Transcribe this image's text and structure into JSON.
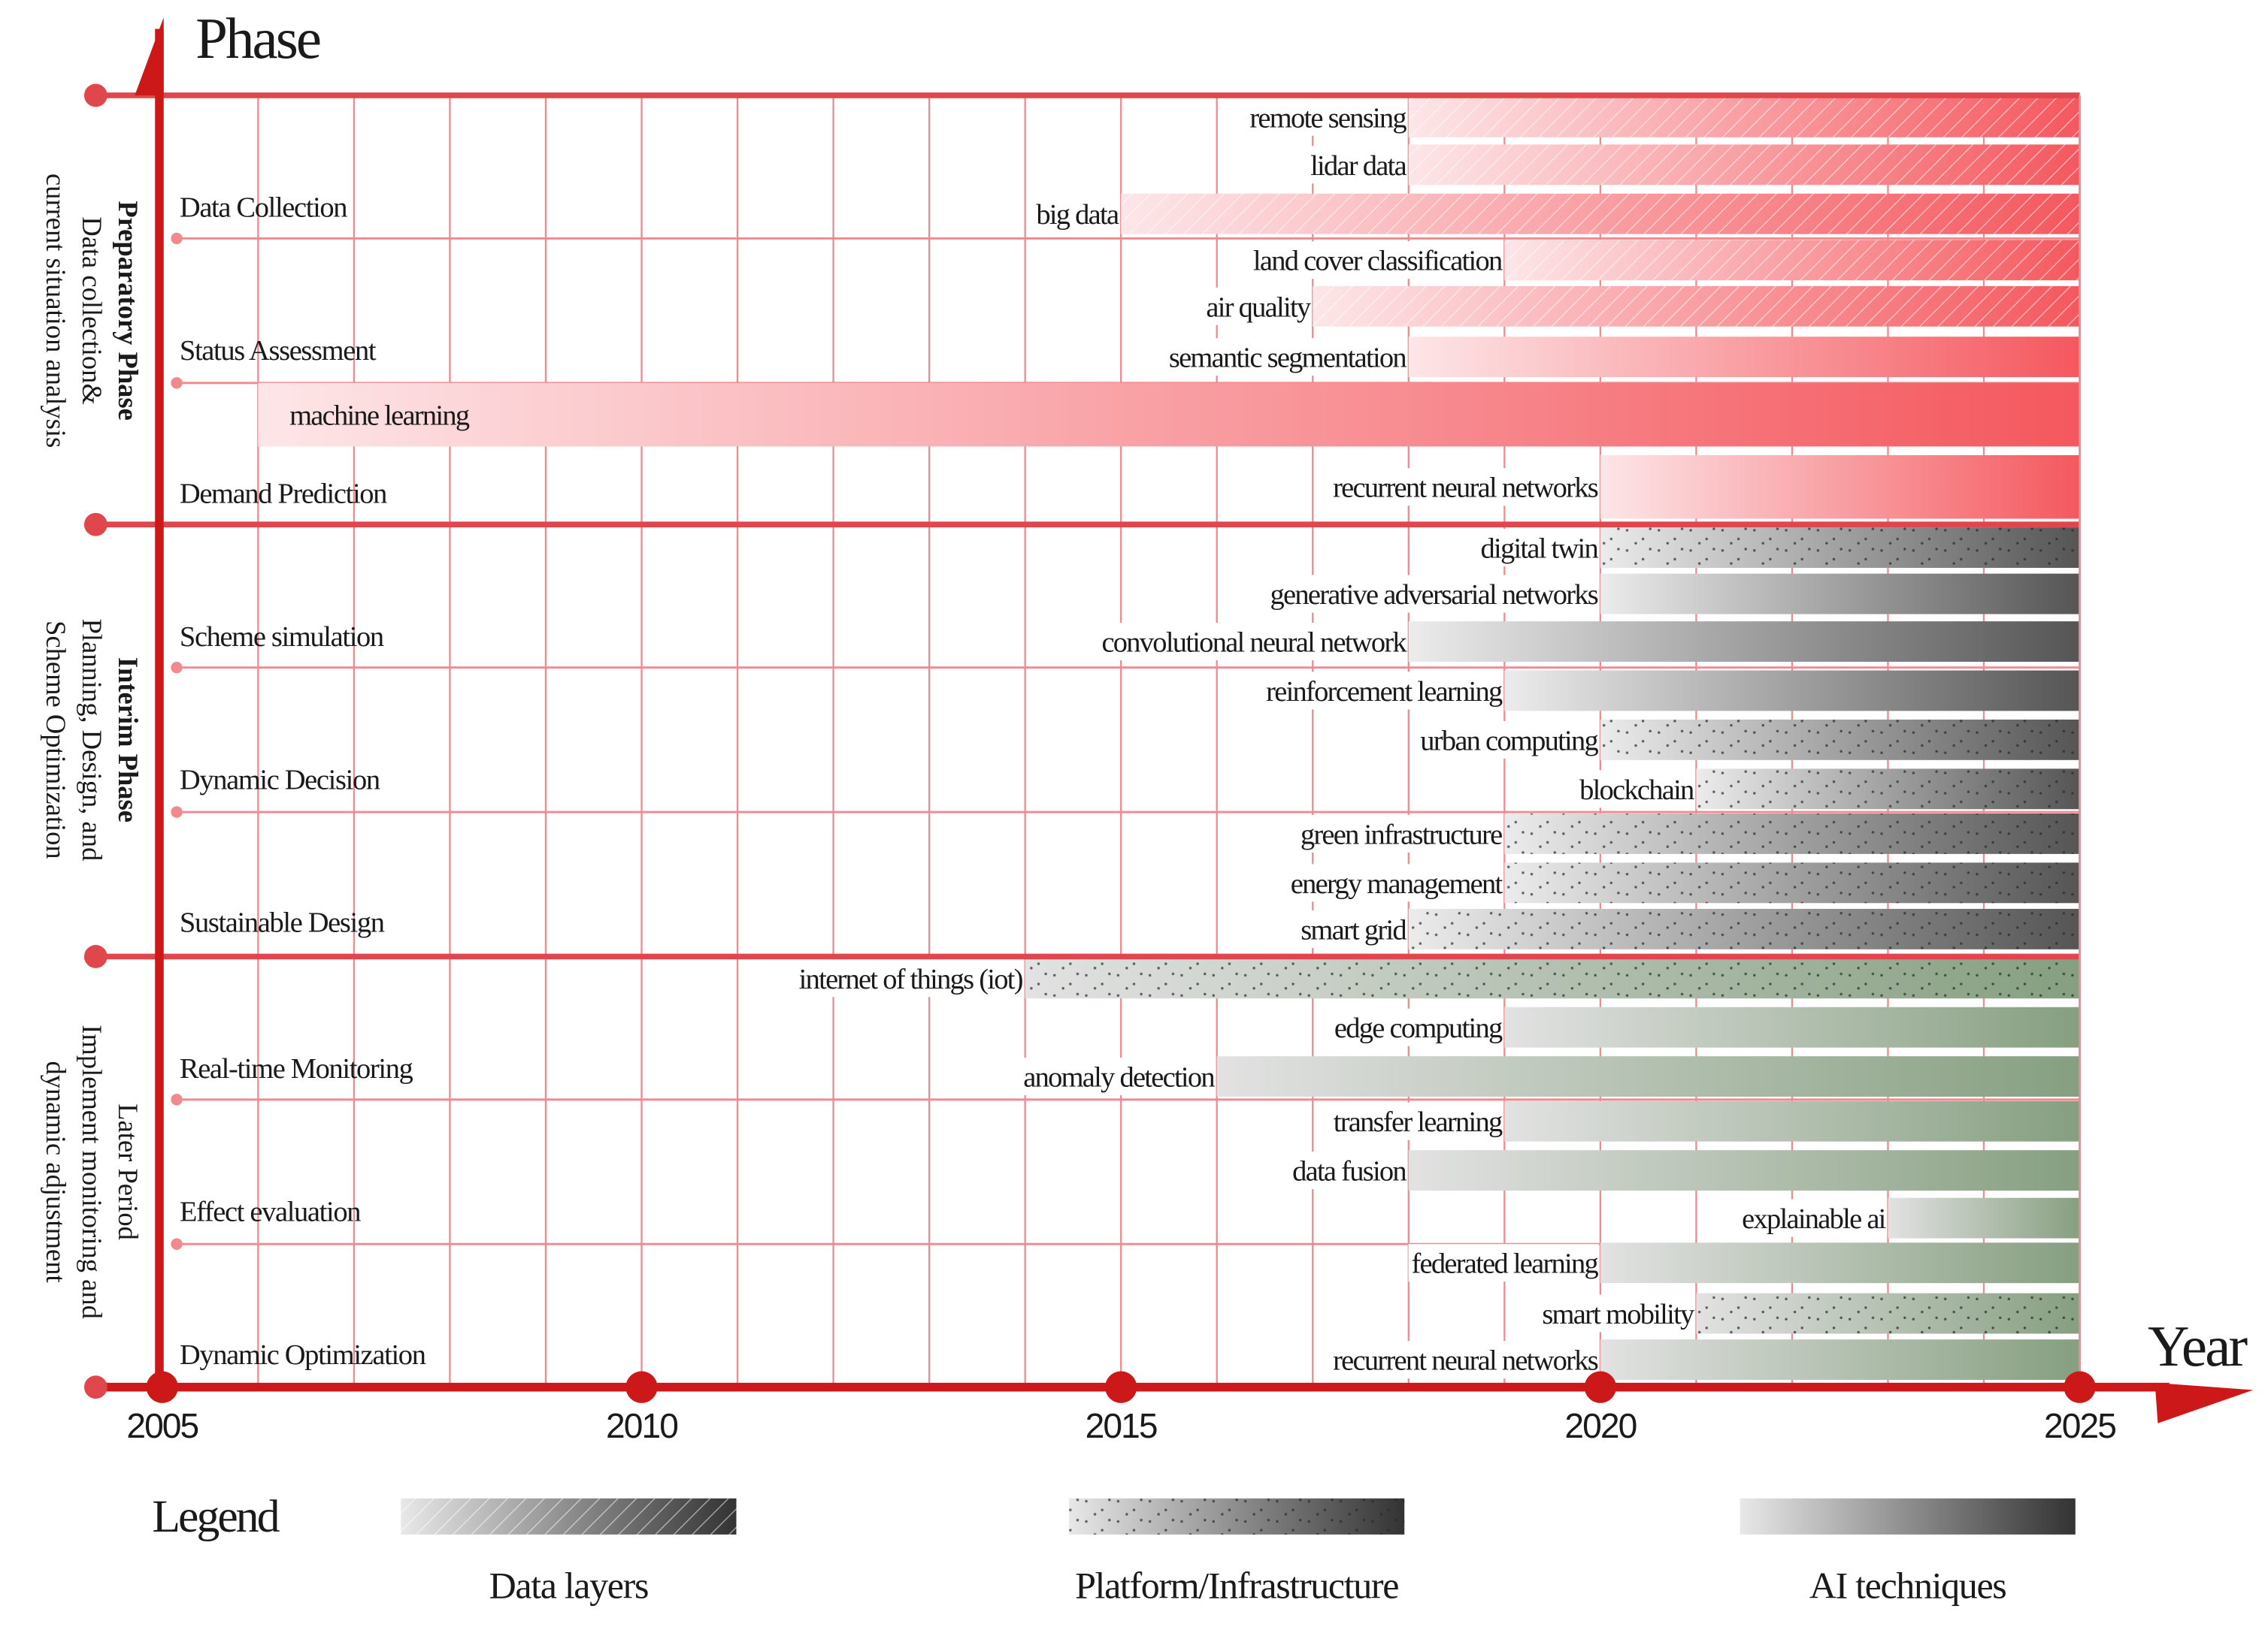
{
  "chart_data": {
    "type": "timeline-gantt",
    "y_axis_title": "Phase",
    "x_axis_title": "Year",
    "xlim": [
      2005,
      2025
    ],
    "x_ticks": [
      "2005",
      "2010",
      "2015",
      "2020",
      "2025"
    ],
    "grid": "vertical lines every year",
    "phases": [
      {
        "name": "Preparatory Phase",
        "desc1": "Data collection&",
        "desc2": "current situation analysis",
        "theme": "red",
        "bold": true,
        "rows": [
          "Data Collection",
          "Status Assessment",
          "Demand Prediction"
        ]
      },
      {
        "name": "Interim Phase",
        "desc1": "Planning, Design, and",
        "desc2": "Scheme Optimization",
        "theme": "gray",
        "bold": true,
        "rows": [
          "Scheme simulation",
          "Dynamic Decision",
          "Sustainable Design"
        ]
      },
      {
        "name": "Later Period",
        "desc1": "Implement monitoring and",
        "desc2": "dynamic adjustment",
        "theme": "green",
        "bold": false,
        "rows": [
          "Real-time Monitoring",
          "Effect evaluation",
          "Dynamic Optimization"
        ]
      }
    ],
    "bars": [
      {
        "label": "remote sensing",
        "start": 2018,
        "end": 2025,
        "category": "data",
        "theme": "red"
      },
      {
        "label": "lidar data",
        "start": 2018,
        "end": 2025,
        "category": "data",
        "theme": "red"
      },
      {
        "label": "big data",
        "start": 2015,
        "end": 2025,
        "category": "data",
        "theme": "red"
      },
      {
        "label": "land cover classification",
        "start": 2019,
        "end": 2025,
        "category": "data",
        "theme": "red"
      },
      {
        "label": "air quality",
        "start": 2017,
        "end": 2025,
        "category": "data",
        "theme": "red"
      },
      {
        "label": "semantic segmentation",
        "start": 2018,
        "end": 2025,
        "category": "ai",
        "theme": "red"
      },
      {
        "label": "machine learning",
        "start": 2006,
        "end": 2025,
        "category": "ai",
        "theme": "red",
        "inside": true
      },
      {
        "label": "recurrent neural networks",
        "start": 2020,
        "end": 2025,
        "category": "ai",
        "theme": "red"
      },
      {
        "label": "digital twin",
        "start": 2020,
        "end": 2025,
        "category": "platform",
        "theme": "gray"
      },
      {
        "label": "generative adversarial networks",
        "start": 2020,
        "end": 2025,
        "category": "ai",
        "theme": "gray"
      },
      {
        "label": "convolutional neural network",
        "start": 2018,
        "end": 2025,
        "category": "ai",
        "theme": "gray"
      },
      {
        "label": "reinforcement learning",
        "start": 2019,
        "end": 2025,
        "category": "ai",
        "theme": "gray"
      },
      {
        "label": "urban computing",
        "start": 2020,
        "end": 2025,
        "category": "platform",
        "theme": "gray"
      },
      {
        "label": "blockchain",
        "start": 2021,
        "end": 2025,
        "category": "platform",
        "theme": "gray"
      },
      {
        "label": "green infrastructure",
        "start": 2019,
        "end": 2025,
        "category": "platform",
        "theme": "gray"
      },
      {
        "label": "energy management",
        "start": 2019,
        "end": 2025,
        "category": "platform",
        "theme": "gray"
      },
      {
        "label": "smart grid",
        "start": 2018,
        "end": 2025,
        "category": "platform",
        "theme": "gray"
      },
      {
        "label": "internet of things (iot)",
        "start": 2014,
        "end": 2025,
        "category": "platform",
        "theme": "green"
      },
      {
        "label": "edge computing",
        "start": 2019,
        "end": 2025,
        "category": "ai",
        "theme": "green"
      },
      {
        "label": "anomaly detection",
        "start": 2016,
        "end": 2025,
        "category": "ai",
        "theme": "green"
      },
      {
        "label": "transfer learning",
        "start": 2019,
        "end": 2025,
        "category": "ai",
        "theme": "green"
      },
      {
        "label": "data fusion",
        "start": 2018,
        "end": 2025,
        "category": "ai",
        "theme": "green"
      },
      {
        "label": "explainable ai",
        "start": 2023,
        "end": 2025,
        "category": "ai",
        "theme": "green"
      },
      {
        "label": "federated learning",
        "start": 2020,
        "end": 2025,
        "category": "ai",
        "theme": "green"
      },
      {
        "label": "smart mobility",
        "start": 2021,
        "end": 2025,
        "category": "platform",
        "theme": "green"
      },
      {
        "label": "recurrent neural networks",
        "start": 2020,
        "end": 2025,
        "category": "ai",
        "theme": "green"
      }
    ],
    "legend": {
      "title": "Legend",
      "placement": "bottom",
      "items": [
        {
          "label": "Data layers",
          "category": "data"
        },
        {
          "label": "Platform/Infrastructure",
          "category": "platform"
        },
        {
          "label": "AI techniques",
          "category": "ai"
        }
      ]
    }
  },
  "colors": {
    "axis": "#cc1818",
    "phase_line": "#e0474c",
    "grid": "#f08a8e",
    "red_light": "#fde6e8",
    "red_dark": "#f4585e",
    "gray_light": "#ececec",
    "gray_dark": "#555555",
    "green_light": "#e2e2e2",
    "green_dark": "#869f80"
  }
}
